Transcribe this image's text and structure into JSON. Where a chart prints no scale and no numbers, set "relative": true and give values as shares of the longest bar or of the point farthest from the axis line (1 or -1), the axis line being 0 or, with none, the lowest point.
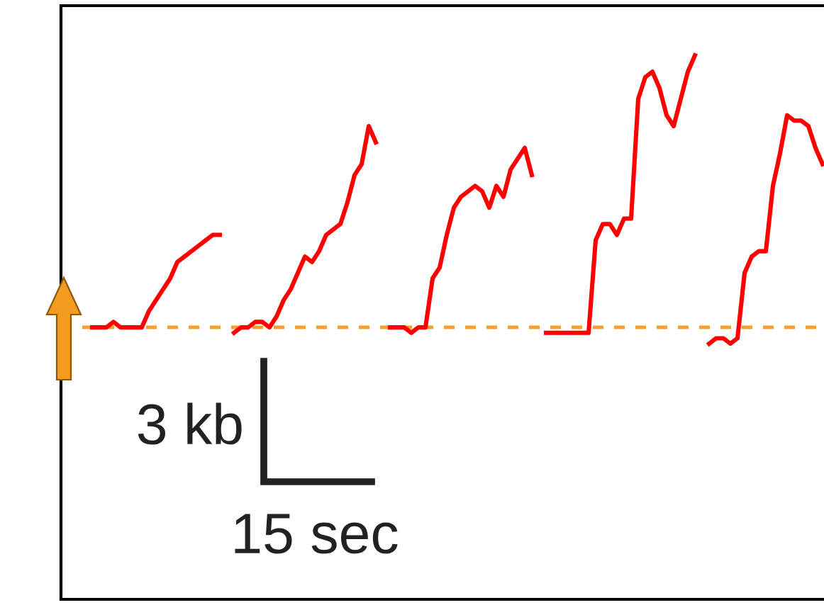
{
  "chart_data": {
    "type": "line",
    "relative": true,
    "line_style": "solid",
    "marker": "none",
    "categories": [
      null,
      null,
      null,
      null,
      null,
      null,
      null,
      null,
      null,
      null,
      null,
      null,
      null,
      null,
      null,
      null,
      null,
      null,
      null,
      null,
      null,
      null,
      null,
      null,
      null,
      null,
      null,
      null,
      null,
      null,
      null,
      null,
      null,
      null,
      null,
      null,
      null,
      null,
      null,
      null,
      null,
      null,
      null,
      null,
      null,
      null,
      null,
      null,
      null,
      null,
      null,
      null,
      null,
      null,
      null,
      null,
      null,
      null,
      null,
      null,
      null,
      null,
      null,
      null,
      null,
      null,
      null,
      null,
      null,
      null,
      null,
      null,
      null,
      null,
      null,
      null,
      null,
      null,
      null,
      null,
      null,
      null,
      null,
      null,
      null,
      null,
      null,
      null,
      null,
      null,
      null,
      null,
      null,
      null,
      null,
      null,
      null,
      null,
      null,
      null,
      null,
      null,
      null,
      null
    ],
    "series": [
      {
        "color": "#ff0000",
        "values": [
          0.5,
          0.5,
          0.5,
          0.51,
          0.5,
          0.5,
          0.5,
          0.5,
          0.53,
          0.55,
          0.57,
          0.59,
          0.62,
          0.63,
          0.64,
          0.65,
          0.66,
          0.67,
          0.67,
          null,
          null,
          null,
          null,
          null,
          null,
          null,
          null,
          null,
          null,
          null,
          null,
          null,
          null,
          null,
          null,
          null,
          null,
          null,
          null,
          null,
          null,
          null,
          null,
          null,
          null,
          null,
          null,
          null,
          null,
          null,
          null,
          null,
          null,
          null,
          null,
          null,
          null,
          null,
          null,
          null,
          null,
          null,
          null,
          null,
          null,
          null,
          null,
          null,
          null,
          null,
          null,
          null,
          null,
          null,
          null,
          null,
          null,
          null,
          null,
          null,
          null,
          null,
          null,
          null,
          null,
          null,
          null,
          null,
          null,
          null,
          null,
          null,
          null,
          null,
          null,
          null,
          null,
          null,
          null,
          null,
          null,
          null,
          null,
          null
        ]
      },
      {
        "color": "#ff0000",
        "values": [
          null,
          null,
          null,
          null,
          null,
          null,
          null,
          null,
          null,
          null,
          null,
          null,
          null,
          null,
          null,
          null,
          null,
          null,
          null,
          null,
          0.49,
          0.5,
          0.5,
          0.51,
          0.51,
          0.5,
          0.52,
          0.55,
          0.57,
          0.6,
          0.63,
          0.62,
          0.64,
          0.67,
          0.68,
          0.69,
          0.73,
          0.78,
          0.8,
          0.87,
          0.84,
          null,
          null,
          null,
          null,
          null,
          null,
          null,
          null,
          null,
          null,
          null,
          null,
          null,
          null,
          null,
          null,
          null,
          null,
          null,
          null,
          null,
          null,
          null,
          null,
          null,
          null,
          null,
          null,
          null,
          null,
          null,
          null,
          null,
          null,
          null,
          null,
          null,
          null,
          null,
          null,
          null,
          null,
          null,
          null,
          null,
          null,
          null,
          null,
          null,
          null,
          null,
          null,
          null,
          null,
          null,
          null,
          null,
          null,
          null,
          null,
          null,
          null,
          null
        ]
      },
      {
        "color": "#ff0000",
        "values": [
          null,
          null,
          null,
          null,
          null,
          null,
          null,
          null,
          null,
          null,
          null,
          null,
          null,
          null,
          null,
          null,
          null,
          null,
          null,
          null,
          null,
          null,
          null,
          null,
          null,
          null,
          null,
          null,
          null,
          null,
          null,
          null,
          null,
          null,
          null,
          null,
          null,
          null,
          null,
          null,
          null,
          null,
          0.5,
          0.5,
          0.5,
          0.49,
          0.5,
          0.5,
          0.59,
          0.61,
          0.67,
          0.72,
          0.74,
          0.75,
          0.76,
          0.75,
          0.72,
          0.76,
          0.74,
          0.79,
          0.81,
          0.83,
          0.78,
          null,
          null,
          null,
          null,
          null,
          null,
          null,
          null,
          null,
          null,
          null,
          null,
          null,
          null,
          null,
          null,
          null,
          null,
          null,
          null,
          null,
          null,
          null,
          null,
          null,
          null,
          null,
          null,
          null,
          null,
          null,
          null,
          null,
          null,
          null,
          null,
          null,
          null,
          null,
          null,
          null
        ]
      },
      {
        "color": "#ff0000",
        "values": [
          null,
          null,
          null,
          null,
          null,
          null,
          null,
          null,
          null,
          null,
          null,
          null,
          null,
          null,
          null,
          null,
          null,
          null,
          null,
          null,
          null,
          null,
          null,
          null,
          null,
          null,
          null,
          null,
          null,
          null,
          null,
          null,
          null,
          null,
          null,
          null,
          null,
          null,
          null,
          null,
          null,
          null,
          null,
          null,
          null,
          null,
          null,
          null,
          null,
          null,
          null,
          null,
          null,
          null,
          null,
          null,
          null,
          null,
          null,
          null,
          null,
          null,
          null,
          null,
          0.49,
          0.49,
          0.49,
          0.49,
          0.49,
          0.49,
          0.49,
          0.66,
          0.69,
          0.69,
          0.67,
          0.7,
          0.7,
          0.92,
          0.96,
          0.97,
          0.94,
          0.89,
          0.87,
          0.92,
          0.97,
          1,
          null,
          null,
          null,
          null,
          null,
          null,
          null,
          null,
          null,
          null,
          null,
          null,
          null,
          null,
          null,
          null,
          null,
          null
        ]
      },
      {
        "color": "#ff0000",
        "values": [
          null,
          null,
          null,
          null,
          null,
          null,
          null,
          null,
          null,
          null,
          null,
          null,
          null,
          null,
          null,
          null,
          null,
          null,
          null,
          null,
          null,
          null,
          null,
          null,
          null,
          null,
          null,
          null,
          null,
          null,
          null,
          null,
          null,
          null,
          null,
          null,
          null,
          null,
          null,
          null,
          null,
          null,
          null,
          null,
          null,
          null,
          null,
          null,
          null,
          null,
          null,
          null,
          null,
          null,
          null,
          null,
          null,
          null,
          null,
          null,
          null,
          null,
          null,
          null,
          null,
          null,
          null,
          null,
          null,
          null,
          null,
          null,
          null,
          null,
          null,
          null,
          null,
          null,
          null,
          null,
          null,
          null,
          null,
          null,
          null,
          null,
          null,
          0.47,
          0.48,
          0.48,
          0.47,
          0.48,
          0.6,
          0.63,
          0.64,
          0.64,
          0.76,
          0.82,
          0.89,
          0.88,
          0.88,
          0.87,
          0.83,
          0.8
        ]
      }
    ],
    "ref_lines": [
      {
        "axis": "y",
        "value": 0.5,
        "color": "#f5a030",
        "line_style": "dashed"
      }
    ],
    "annotations": [
      "3 kb",
      "15 sec"
    ]
  }
}
